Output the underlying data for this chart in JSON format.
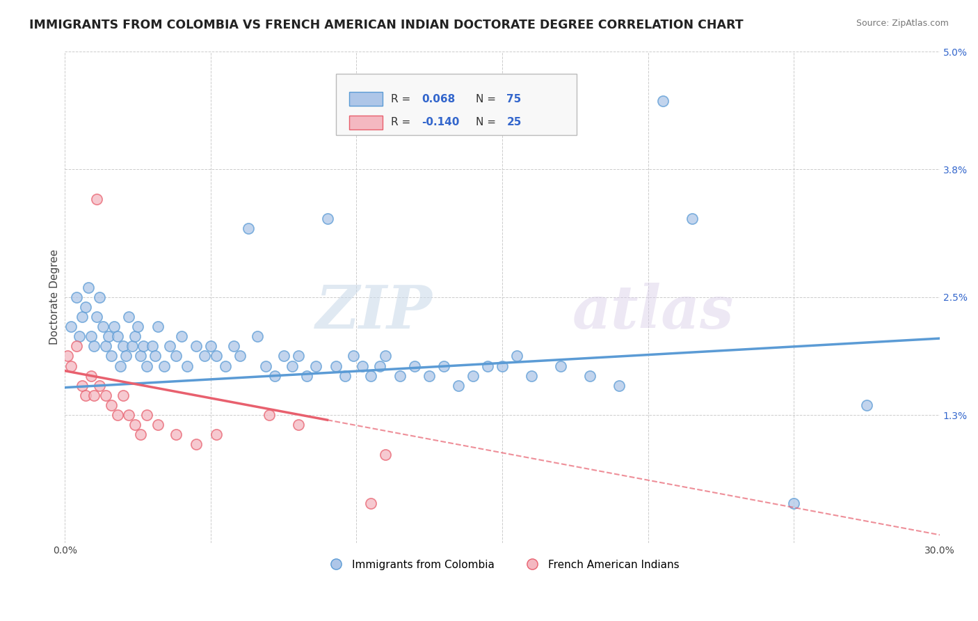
{
  "title": "IMMIGRANTS FROM COLOMBIA VS FRENCH AMERICAN INDIAN DOCTORATE DEGREE CORRELATION CHART",
  "source": "Source: ZipAtlas.com",
  "xlabel": "",
  "ylabel": "Doctorate Degree",
  "xlim": [
    0.0,
    30.0
  ],
  "ylim": [
    0.0,
    5.0
  ],
  "yticks": [
    0.0,
    1.3,
    2.5,
    3.8,
    5.0
  ],
  "xticks": [
    0.0,
    5.0,
    10.0,
    15.0,
    20.0,
    25.0,
    30.0
  ],
  "xtick_labels": [
    "0.0%",
    "",
    "",
    "",
    "",
    "",
    "30.0%"
  ],
  "ytick_labels": [
    "",
    "1.3%",
    "2.5%",
    "3.8%",
    "5.0%"
  ],
  "blue_color": "#5b9bd5",
  "pink_color": "#e8606e",
  "blue_fill": "#aec6e8",
  "pink_fill": "#f4b8c1",
  "background_color": "#ffffff",
  "grid_color": "#cccccc",
  "watermark_zip": "ZIP",
  "watermark_atlas": "atlas",
  "colombia_points": [
    [
      0.2,
      2.2
    ],
    [
      0.4,
      2.5
    ],
    [
      0.5,
      2.1
    ],
    [
      0.6,
      2.3
    ],
    [
      0.7,
      2.4
    ],
    [
      0.8,
      2.6
    ],
    [
      0.9,
      2.1
    ],
    [
      1.0,
      2.0
    ],
    [
      1.1,
      2.3
    ],
    [
      1.2,
      2.5
    ],
    [
      1.3,
      2.2
    ],
    [
      1.4,
      2.0
    ],
    [
      1.5,
      2.1
    ],
    [
      1.6,
      1.9
    ],
    [
      1.7,
      2.2
    ],
    [
      1.8,
      2.1
    ],
    [
      1.9,
      1.8
    ],
    [
      2.0,
      2.0
    ],
    [
      2.1,
      1.9
    ],
    [
      2.2,
      2.3
    ],
    [
      2.3,
      2.0
    ],
    [
      2.4,
      2.1
    ],
    [
      2.5,
      2.2
    ],
    [
      2.6,
      1.9
    ],
    [
      2.7,
      2.0
    ],
    [
      2.8,
      1.8
    ],
    [
      3.0,
      2.0
    ],
    [
      3.1,
      1.9
    ],
    [
      3.2,
      2.2
    ],
    [
      3.4,
      1.8
    ],
    [
      3.6,
      2.0
    ],
    [
      3.8,
      1.9
    ],
    [
      4.0,
      2.1
    ],
    [
      4.2,
      1.8
    ],
    [
      4.5,
      2.0
    ],
    [
      4.8,
      1.9
    ],
    [
      5.0,
      2.0
    ],
    [
      5.2,
      1.9
    ],
    [
      5.5,
      1.8
    ],
    [
      5.8,
      2.0
    ],
    [
      6.0,
      1.9
    ],
    [
      6.3,
      3.2
    ],
    [
      6.6,
      2.1
    ],
    [
      6.9,
      1.8
    ],
    [
      7.2,
      1.7
    ],
    [
      7.5,
      1.9
    ],
    [
      7.8,
      1.8
    ],
    [
      8.0,
      1.9
    ],
    [
      8.3,
      1.7
    ],
    [
      8.6,
      1.8
    ],
    [
      9.0,
      3.3
    ],
    [
      9.3,
      1.8
    ],
    [
      9.6,
      1.7
    ],
    [
      9.9,
      1.9
    ],
    [
      10.2,
      1.8
    ],
    [
      10.5,
      1.7
    ],
    [
      10.8,
      1.8
    ],
    [
      11.0,
      1.9
    ],
    [
      11.5,
      1.7
    ],
    [
      12.0,
      1.8
    ],
    [
      12.5,
      1.7
    ],
    [
      13.0,
      1.8
    ],
    [
      13.5,
      1.6
    ],
    [
      14.0,
      1.7
    ],
    [
      14.5,
      1.8
    ],
    [
      15.0,
      1.8
    ],
    [
      15.5,
      1.9
    ],
    [
      16.0,
      1.7
    ],
    [
      17.0,
      1.8
    ],
    [
      18.0,
      1.7
    ],
    [
      19.0,
      1.6
    ],
    [
      20.5,
      4.5
    ],
    [
      21.5,
      3.3
    ],
    [
      25.0,
      0.4
    ],
    [
      27.5,
      1.4
    ]
  ],
  "french_points": [
    [
      0.1,
      1.9
    ],
    [
      0.2,
      1.8
    ],
    [
      0.4,
      2.0
    ],
    [
      0.6,
      1.6
    ],
    [
      0.7,
      1.5
    ],
    [
      0.9,
      1.7
    ],
    [
      1.0,
      1.5
    ],
    [
      1.1,
      3.5
    ],
    [
      1.2,
      1.6
    ],
    [
      1.4,
      1.5
    ],
    [
      1.6,
      1.4
    ],
    [
      1.8,
      1.3
    ],
    [
      2.0,
      1.5
    ],
    [
      2.2,
      1.3
    ],
    [
      2.4,
      1.2
    ],
    [
      2.6,
      1.1
    ],
    [
      2.8,
      1.3
    ],
    [
      3.2,
      1.2
    ],
    [
      3.8,
      1.1
    ],
    [
      4.5,
      1.0
    ],
    [
      5.2,
      1.1
    ],
    [
      7.0,
      1.3
    ],
    [
      8.0,
      1.2
    ],
    [
      10.5,
      0.4
    ],
    [
      11.0,
      0.9
    ]
  ],
  "blue_line": {
    "x0": 0.0,
    "y0": 1.58,
    "x1": 30.0,
    "y1": 2.08
  },
  "pink_solid_line": {
    "x0": 0.0,
    "y0": 1.75,
    "x1": 9.0,
    "y1": 1.25
  },
  "pink_dashed_line": {
    "x0": 9.0,
    "y0": 1.25,
    "x1": 30.0,
    "y1": 0.08
  }
}
